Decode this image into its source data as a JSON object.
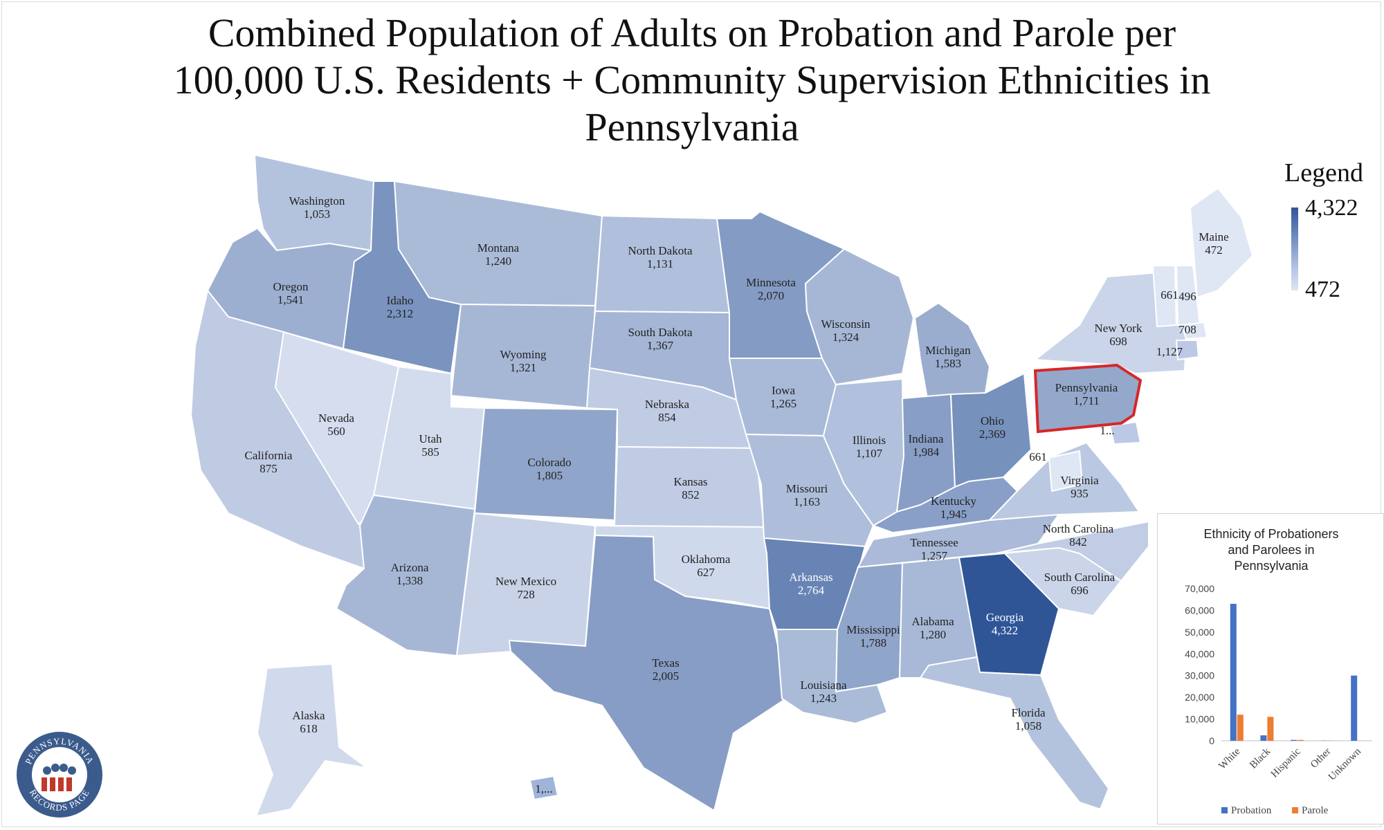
{
  "title_lines": [
    "Combined Population of Adults on Probation and Parole per",
    "100,000 U.S. Residents + Community Supervision Ethnicities in",
    "Pennsylvania"
  ],
  "legend": {
    "title": "Legend",
    "max": "4,322",
    "min": "472"
  },
  "colors": {
    "low": "#dfe6f4",
    "high": "#2f5597",
    "highlight_border": "#d62728",
    "border": "#ffffff"
  },
  "states": [
    {
      "name": "Washington",
      "value": "1,053"
    },
    {
      "name": "Oregon",
      "value": "1,541"
    },
    {
      "name": "California",
      "value": "875"
    },
    {
      "name": "Nevada",
      "value": "560"
    },
    {
      "name": "Idaho",
      "value": "2,312"
    },
    {
      "name": "Montana",
      "value": "1,240"
    },
    {
      "name": "Wyoming",
      "value": "1,321"
    },
    {
      "name": "Utah",
      "value": "585"
    },
    {
      "name": "Arizona",
      "value": "1,338"
    },
    {
      "name": "Colorado",
      "value": "1,805"
    },
    {
      "name": "New Mexico",
      "value": "728"
    },
    {
      "name": "North Dakota",
      "value": "1,131"
    },
    {
      "name": "South Dakota",
      "value": "1,367"
    },
    {
      "name": "Nebraska",
      "value": "854"
    },
    {
      "name": "Kansas",
      "value": "852"
    },
    {
      "name": "Oklahoma",
      "value": "627"
    },
    {
      "name": "Texas",
      "value": "2,005"
    },
    {
      "name": "Minnesota",
      "value": "2,070"
    },
    {
      "name": "Iowa",
      "value": "1,265"
    },
    {
      "name": "Missouri",
      "value": "1,163"
    },
    {
      "name": "Arkansas",
      "value": "2,764"
    },
    {
      "name": "Louisiana",
      "value": "1,243"
    },
    {
      "name": "Wisconsin",
      "value": "1,324"
    },
    {
      "name": "Illinois",
      "value": "1,107"
    },
    {
      "name": "Michigan",
      "value": "1,583"
    },
    {
      "name": "Indiana",
      "value": "1,984"
    },
    {
      "name": "Ohio",
      "value": "2,369"
    },
    {
      "name": "Kentucky",
      "value": "1,945"
    },
    {
      "name": "Tennessee",
      "value": "1,257"
    },
    {
      "name": "Mississippi",
      "value": "1,788"
    },
    {
      "name": "Alabama",
      "value": "1,280"
    },
    {
      "name": "Georgia",
      "value": "4,322"
    },
    {
      "name": "Florida",
      "value": "1,058"
    },
    {
      "name": "South Carolina",
      "value": "696"
    },
    {
      "name": "North Carolina",
      "value": "842"
    },
    {
      "name": "Virginia",
      "value": "935"
    },
    {
      "name": "Pennsylvania",
      "value": "1,711"
    },
    {
      "name": "New York",
      "value": "698"
    },
    {
      "name": "Maine",
      "value": "472"
    },
    {
      "name": "Alaska",
      "value": "618"
    }
  ],
  "extra_labels": [
    "661",
    "496",
    "708",
    "1,127",
    "661",
    "1...",
    "1,..."
  ],
  "chart_data": {
    "type": "bar",
    "title_lines": [
      "Ethnicity of Probationers",
      "and Parolees in",
      "Pennsylvania"
    ],
    "categories": [
      "White",
      "Black",
      "Hispanic",
      "Other",
      "Unknown"
    ],
    "series": [
      {
        "name": "Probation",
        "color": "#4472c4",
        "values": [
          63000,
          2500,
          400,
          100,
          30000
        ]
      },
      {
        "name": "Parole",
        "color": "#ed7d31",
        "values": [
          12000,
          11000,
          400,
          100,
          0
        ]
      }
    ],
    "ylim": [
      0,
      70000
    ],
    "yticks": [
      "70,000",
      "60,000",
      "50,000",
      "40,000",
      "30,000",
      "20,000",
      "10,000",
      "0"
    ],
    "legend_position": "bottom"
  },
  "logo": {
    "text_top": "PENNSYLVANIA",
    "text_bottom": "RECORDS PAGE",
    "color": "#3b5b8c",
    "accent": "#c0392b"
  }
}
